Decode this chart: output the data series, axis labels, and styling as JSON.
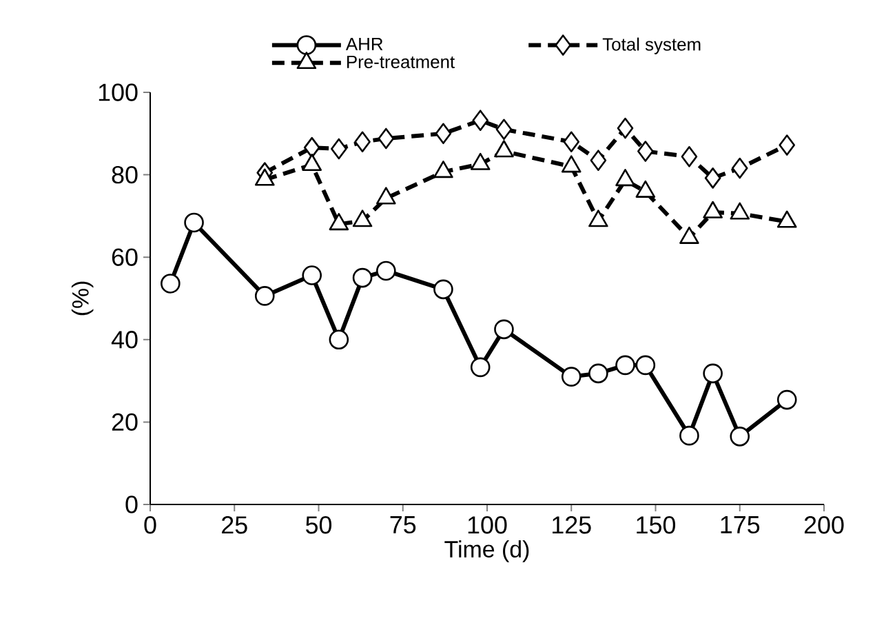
{
  "chart_data": {
    "type": "line",
    "xlabel": "Time (d)",
    "ylabel": "(%)",
    "xlim": [
      0,
      200
    ],
    "xticks": [
      0,
      25,
      50,
      75,
      100,
      125,
      150,
      175,
      200
    ],
    "ylim": [
      0,
      100
    ],
    "yticks": [
      0,
      20,
      40,
      60,
      80,
      100
    ],
    "grid": false,
    "legend": "top",
    "series": [
      {
        "name": "AHR",
        "color": "#000000",
        "marker": "circle",
        "line_style": "solid",
        "x": [
          6,
          13,
          34,
          48,
          56,
          63,
          70,
          87,
          98,
          105,
          125,
          133,
          141,
          147,
          160,
          167,
          175,
          189
        ],
        "values": [
          53.6,
          68.4,
          50.6,
          55.6,
          40,
          55,
          56.7,
          52.2,
          33.3,
          42.5,
          31,
          31.8,
          33.8,
          33.8,
          16.7,
          31.8,
          16.5,
          25.4
        ]
      },
      {
        "name": "Total system",
        "color": "#000000",
        "marker": "diamond",
        "line_style": "dashed",
        "x": [
          34,
          48,
          56,
          63,
          70,
          87,
          98,
          105,
          125,
          133,
          141,
          147,
          160,
          167,
          175,
          189
        ],
        "values": [
          80.5,
          86.6,
          86.3,
          88,
          88.8,
          90,
          93.2,
          91,
          88,
          83.5,
          91.3,
          85.7,
          84.4,
          79.2,
          81.6,
          87.2
        ]
      },
      {
        "name": "Pre-treatment",
        "color": "#000000",
        "marker": "triangle",
        "line_style": "dashed",
        "x": [
          34,
          48,
          56,
          63,
          70,
          87,
          98,
          105,
          125,
          133,
          141,
          147,
          160,
          167,
          175,
          189
        ],
        "values": [
          78.8,
          82.4,
          68,
          68.8,
          74.3,
          80.7,
          82.6,
          85.7,
          82,
          68.8,
          78.7,
          75.9,
          64.7,
          70.9,
          70.6,
          68.6
        ]
      }
    ]
  }
}
